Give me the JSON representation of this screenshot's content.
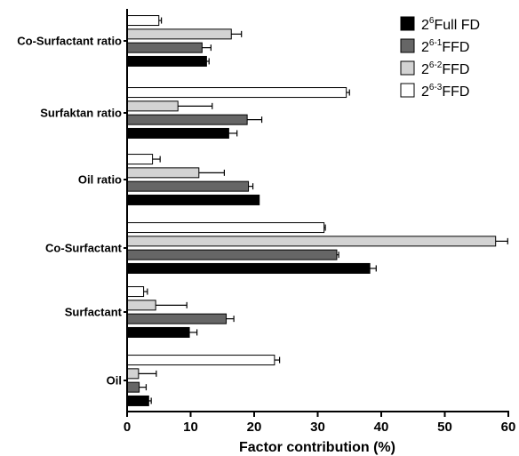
{
  "chart_data": {
    "type": "bar",
    "orientation": "horizontal",
    "categories": [
      "Co-Surfactant ratio",
      "Surfaktan ratio",
      "Oil ratio",
      "Co-Surfactant",
      "Surfactant",
      "Oil"
    ],
    "series": [
      {
        "name": "2^6Full FD",
        "label_base": "2",
        "label_sup": "6",
        "label_rest": "Full FD",
        "color": "#000000",
        "values": [
          12.5,
          16.0,
          20.8,
          38.2,
          9.8,
          3.4
        ],
        "errors": [
          0.4,
          1.3,
          0.0,
          1.0,
          1.2,
          0.4
        ]
      },
      {
        "name": "2^6-1FFD",
        "label_base": "2",
        "label_sup": "6-1",
        "label_rest": "FFD",
        "color": "#666666",
        "values": [
          11.8,
          18.9,
          19.1,
          33.0,
          15.6,
          1.9
        ],
        "errors": [
          1.4,
          2.3,
          0.7,
          0.3,
          1.2,
          1.1
        ]
      },
      {
        "name": "2^6-2FFD",
        "label_base": "2",
        "label_sup": "6-2",
        "label_rest": "FFD",
        "color": "#d3d3d3",
        "values": [
          16.4,
          8.0,
          11.3,
          58.0,
          4.5,
          1.8
        ],
        "errors": [
          1.6,
          5.4,
          4.0,
          1.9,
          4.9,
          2.8
        ]
      },
      {
        "name": "2^6-3FFD",
        "label_base": "2",
        "label_sup": "6-3",
        "label_rest": "FFD",
        "color": "#ffffff",
        "values": [
          5.0,
          34.5,
          4.0,
          31.0,
          2.6,
          23.2
        ],
        "errors": [
          0.4,
          0.5,
          1.2,
          0.2,
          0.6,
          0.8
        ]
      }
    ],
    "xlabel": "Factor contribution (%)",
    "xlim": [
      0,
      60
    ],
    "xticks": [
      0,
      10,
      20,
      30,
      40,
      50,
      60
    ],
    "grid": false,
    "legend_position": "top-right"
  }
}
